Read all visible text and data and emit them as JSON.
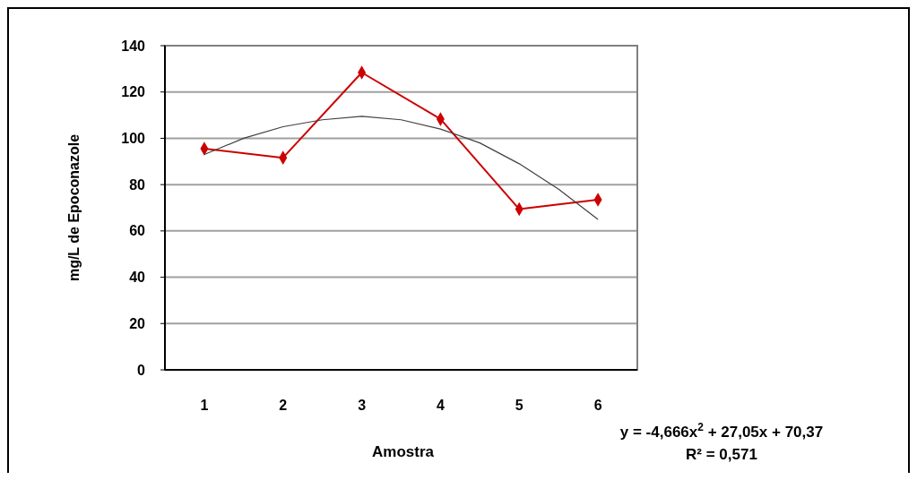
{
  "chart_data": {
    "type": "line",
    "xlabel": "Amostra",
    "ylabel": "mg/L de Epoconazole",
    "x": [
      1,
      2,
      3,
      4,
      5,
      6
    ],
    "xlim": [
      0.5,
      6.5
    ],
    "xticks": [
      1,
      2,
      3,
      4,
      5,
      6
    ],
    "ylim": [
      0,
      140
    ],
    "yticks": [
      0,
      20,
      40,
      60,
      80,
      100,
      120,
      140
    ],
    "grid": "y",
    "line_style": "solid",
    "series": [
      {
        "color": "#cc0000",
        "marker": "diamond",
        "values": [
          95.5,
          91.6,
          128.4,
          108.3,
          69.4,
          73.5
        ]
      },
      {
        "type": "line",
        "color": "#404040",
        "marker": "none",
        "x": [
          1,
          1.5,
          2,
          2.5,
          3,
          3.5,
          4,
          4.5,
          5,
          5.5,
          6
        ],
        "values": [
          93,
          100,
          105,
          108,
          109.5,
          108,
          104,
          98,
          89,
          78,
          65
        ]
      }
    ],
    "annotations": [
      "y = -4,666x$^{2}$ + 27,05x + 70,37",
      "R² = 0,571"
    ]
  }
}
